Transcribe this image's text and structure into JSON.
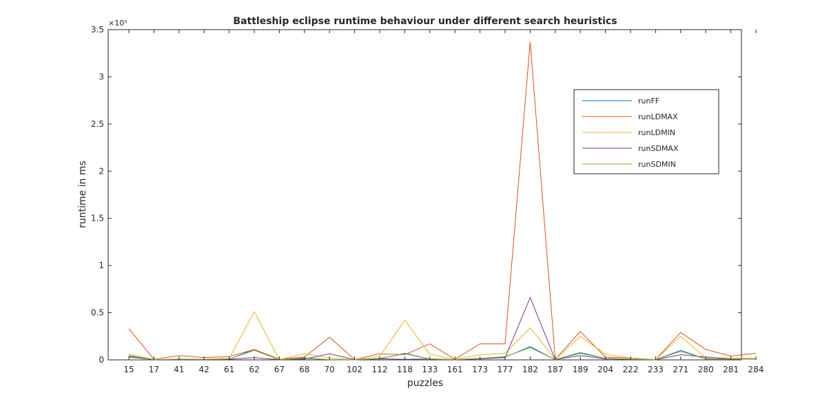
{
  "chart_data": {
    "type": "line",
    "title": "Battleship eclipse runtime behaviour under different search heuristics",
    "xlabel": "puzzles",
    "ylabel": "runtime in ms",
    "y_exponent_label": "×10⁵",
    "ylim": [
      0,
      350000
    ],
    "yticks": [
      {
        "value": 0,
        "label": "0"
      },
      {
        "value": 50000,
        "label": "0.5"
      },
      {
        "value": 100000,
        "label": "1"
      },
      {
        "value": 150000,
        "label": "1.5"
      },
      {
        "value": 200000,
        "label": "2"
      },
      {
        "value": 250000,
        "label": "2.5"
      },
      {
        "value": 300000,
        "label": "3"
      },
      {
        "value": 350000,
        "label": "3.5"
      }
    ],
    "categories": [
      "15",
      "17",
      "41",
      "42",
      "61",
      "62",
      "67",
      "68",
      "70",
      "102",
      "112",
      "118",
      "133",
      "161",
      "173",
      "177",
      "182",
      "187",
      "189",
      "204",
      "222",
      "233",
      "271",
      "280",
      "281",
      "284"
    ],
    "legend_position": "top-right",
    "grid": false,
    "series": [
      {
        "name": "runFF",
        "color": "#0072BD",
        "values": [
          4000,
          300,
          600,
          500,
          700,
          11000,
          200,
          2000,
          300,
          100,
          1000,
          7000,
          800,
          300,
          1500,
          3000,
          14000,
          200,
          7000,
          1500,
          700,
          200,
          10000,
          1000,
          800,
          1200
        ]
      },
      {
        "name": "runLDMAX",
        "color": "#D95319",
        "values": [
          33000,
          600,
          4500,
          2500,
          3500,
          11000,
          700,
          3000,
          24000,
          300,
          6500,
          5500,
          17000,
          600,
          17000,
          17000,
          337000,
          600,
          30000,
          3000,
          2000,
          300,
          29000,
          11000,
          4000,
          7000
        ]
      },
      {
        "name": "runLDMIN",
        "color": "#EDB120",
        "values": [
          6000,
          400,
          900,
          700,
          1500,
          51000,
          400,
          6500,
          2000,
          200,
          3500,
          42000,
          6000,
          400,
          5500,
          7000,
          34000,
          400,
          25000,
          6000,
          2000,
          200,
          25000,
          2000,
          2000,
          1500
        ]
      },
      {
        "name": "runSDMAX",
        "color": "#7E2F8E",
        "values": [
          3000,
          300,
          500,
          400,
          600,
          2500,
          200,
          800,
          6500,
          200,
          1200,
          500,
          1000,
          300,
          1000,
          2500,
          66000,
          300,
          4500,
          1000,
          600,
          200,
          5500,
          3000,
          1000,
          800
        ]
      },
      {
        "name": "runSDMIN",
        "color": "#77AC30",
        "values": [
          4500,
          300,
          700,
          600,
          900,
          10000,
          200,
          1500,
          300,
          100,
          1500,
          6500,
          800,
          200,
          1500,
          3500,
          13000,
          300,
          8000,
          1500,
          800,
          200,
          9000,
          1000,
          1000,
          700
        ]
      }
    ]
  }
}
